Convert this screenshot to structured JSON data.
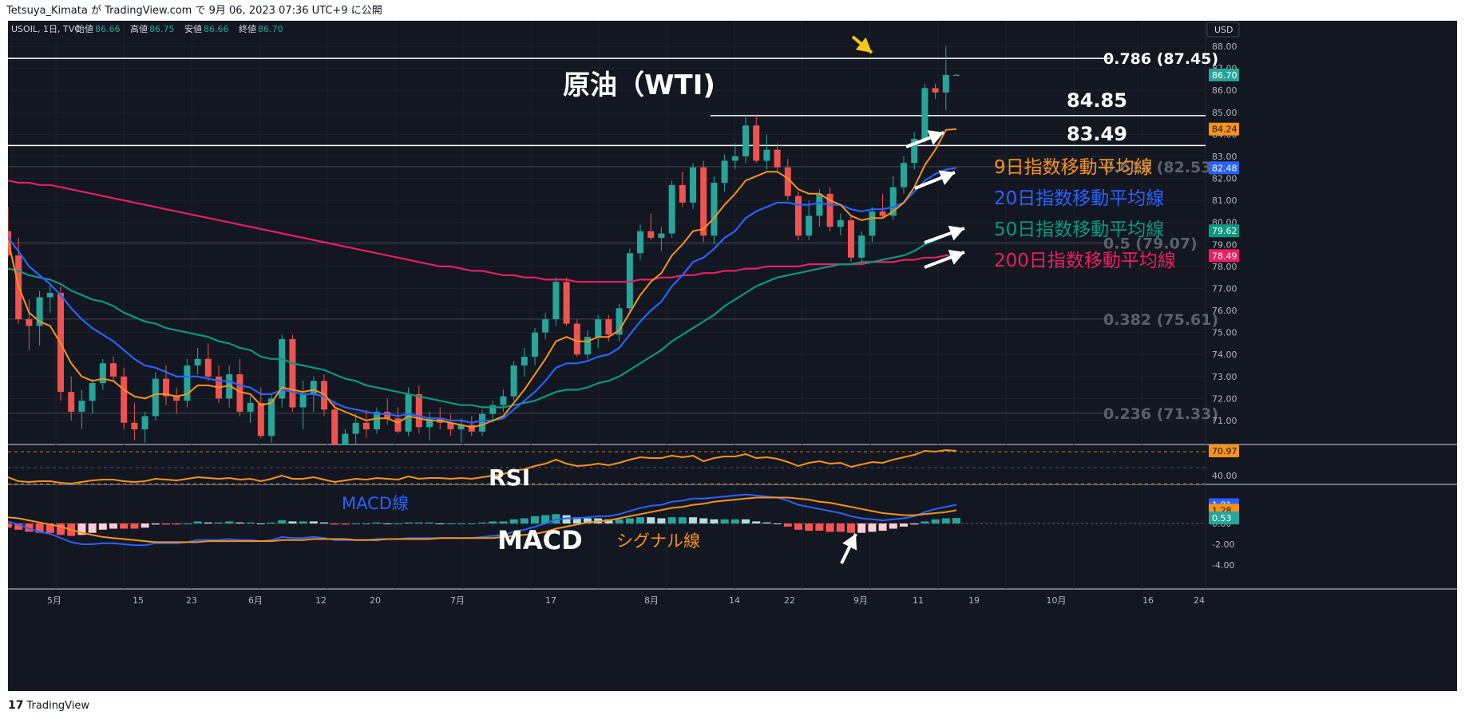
{
  "header": {
    "published_line": "Tetsuya_Kimata が TradingView.com で 9月 06, 2023 07:36 UTC+9 に公開"
  },
  "symbol_bar": {
    "symbol": "USOIL, 1日, TVC",
    "open_label": "始値",
    "open": "86.66",
    "high_label": "高値",
    "high": "86.75",
    "low_label": "安値",
    "low": "86.66",
    "close_label": "終値",
    "close": "86.70"
  },
  "currency_button": "USD",
  "footer": {
    "brand": "TradingView",
    "logo_mark": "17"
  },
  "colors": {
    "background": "#131722",
    "up": "#26a69a",
    "down": "#ef5350",
    "ema9": "#f7931a",
    "ema20": "#2962ff",
    "ema50": "#089981",
    "ema200": "#e91e63",
    "rsi": "#f7931a",
    "macd": "#2962ff",
    "signal": "#f7931a"
  },
  "annotations": {
    "title": "原油（WTI)",
    "level_84": "84.85",
    "level_83": "83.49",
    "ema9_label": "9日指数移動平均線",
    "ema20_label": "20日指数移動平均線",
    "ema50_label": "50日指数移動平均線",
    "ema200_label": "200日指数移動平均線",
    "rsi_label": "RSI",
    "macd_title": "MACD",
    "macd_line_label": "MACD線",
    "signal_line_label": "シグナル線"
  },
  "chart_data": [
    {
      "type": "candlestick",
      "symbol": "USOIL",
      "timeframe": "1日",
      "currency": "USD",
      "x_tick_labels": [
        "5月",
        "15",
        "23",
        "6月",
        "12",
        "20",
        "7月",
        "17",
        "8月",
        "14",
        "22",
        "9月",
        "11",
        "19",
        "10月",
        "16",
        "24"
      ],
      "y_ticks": [
        "88.00",
        "87.00",
        "86.00",
        "85.00",
        "84.00",
        "83.00",
        "82.00",
        "81.00",
        "80.00",
        "79.00",
        "78.00",
        "77.00",
        "76.00",
        "75.00",
        "74.00",
        "73.00",
        "72.00",
        "71.00"
      ],
      "ylim": [
        71,
        88
      ],
      "fibonacci": [
        {
          "label": "0.786 (87.45)",
          "value": 87.45
        },
        {
          "label": "0.618 (82.53)",
          "value": 82.53
        },
        {
          "label": "0.5 (79.07)",
          "value": 79.07
        },
        {
          "label": "0.382 (75.61)",
          "value": 75.61
        },
        {
          "label": "0.236 (71.33)",
          "value": 71.33
        }
      ],
      "horizontal_levels": [
        84.85,
        83.49
      ],
      "price_labels": [
        {
          "name": "EMA9",
          "text": "84.24",
          "value": 84.24
        },
        {
          "name": "EMA20",
          "text": "82.48",
          "value": 82.48
        },
        {
          "name": "EMA50",
          "text": "79.62",
          "value": 79.62
        },
        {
          "name": "EMA200",
          "text": "78.49",
          "value": 78.49
        },
        {
          "name": "Close",
          "text": "86.70",
          "value": 86.7
        }
      ],
      "candles": [
        [
          79.6,
          80.7,
          78.4,
          78.5
        ],
        [
          78.5,
          79.3,
          75.4,
          75.6
        ],
        [
          75.6,
          76.5,
          74.2,
          75.3
        ],
        [
          75.3,
          76.9,
          74.4,
          76.6
        ],
        [
          76.6,
          77.2,
          75.9,
          76.8
        ],
        [
          76.8,
          77.1,
          71.9,
          72.3
        ],
        [
          72.3,
          73.0,
          71.0,
          71.4
        ],
        [
          71.4,
          72.4,
          70.6,
          71.9
        ],
        [
          71.9,
          72.9,
          71.3,
          72.7
        ],
        [
          72.7,
          73.8,
          72.4,
          73.6
        ],
        [
          73.6,
          73.9,
          72.8,
          73.0
        ],
        [
          73.0,
          73.4,
          70.6,
          70.9
        ],
        [
          70.9,
          71.8,
          70.1,
          70.6
        ],
        [
          70.6,
          71.4,
          70.0,
          71.2
        ],
        [
          71.2,
          73.2,
          71.0,
          72.9
        ],
        [
          72.9,
          73.5,
          71.7,
          72.1
        ],
        [
          72.1,
          72.5,
          71.3,
          71.9
        ],
        [
          71.9,
          73.8,
          71.6,
          73.5
        ],
        [
          73.5,
          74.3,
          73.1,
          73.8
        ],
        [
          73.8,
          74.5,
          72.8,
          73.0
        ],
        [
          73.0,
          73.5,
          71.8,
          72.0
        ],
        [
          72.0,
          73.5,
          71.6,
          73.1
        ],
        [
          73.1,
          73.8,
          71.2,
          71.4
        ],
        [
          71.4,
          72.1,
          70.9,
          71.8
        ],
        [
          71.8,
          72.5,
          70.2,
          70.3
        ],
        [
          70.3,
          72.2,
          70.0,
          72.0
        ],
        [
          72.0,
          74.9,
          71.6,
          74.7
        ],
        [
          74.7,
          74.9,
          71.4,
          71.6
        ],
        [
          71.6,
          72.8,
          70.6,
          72.2
        ],
        [
          72.2,
          73.0,
          71.4,
          72.8
        ],
        [
          72.8,
          73.1,
          71.2,
          71.5
        ],
        [
          71.5,
          71.9,
          69.5,
          69.8
        ],
        [
          69.8,
          70.6,
          69.0,
          70.4
        ],
        [
          70.4,
          71.3,
          69.7,
          70.9
        ],
        [
          70.9,
          71.5,
          70.2,
          70.6
        ],
        [
          70.6,
          71.6,
          70.4,
          71.4
        ],
        [
          71.4,
          72.0,
          70.8,
          71.1
        ],
        [
          71.1,
          71.6,
          70.4,
          70.5
        ],
        [
          70.5,
          72.5,
          70.3,
          72.2
        ],
        [
          72.2,
          72.6,
          70.4,
          70.7
        ],
        [
          70.7,
          71.4,
          70.1,
          71.1
        ],
        [
          71.1,
          71.6,
          70.6,
          70.9
        ],
        [
          70.9,
          71.3,
          70.3,
          70.6
        ],
        [
          70.6,
          71.1,
          70.0,
          70.8
        ],
        [
          70.8,
          71.2,
          70.3,
          70.5
        ],
        [
          70.5,
          71.5,
          70.3,
          71.3
        ],
        [
          71.3,
          71.9,
          70.9,
          71.7
        ],
        [
          71.7,
          72.4,
          71.4,
          72.1
        ],
        [
          72.1,
          73.7,
          71.9,
          73.5
        ],
        [
          73.5,
          74.3,
          73.0,
          73.9
        ],
        [
          73.9,
          75.2,
          73.5,
          75.0
        ],
        [
          75.0,
          75.9,
          74.7,
          75.6
        ],
        [
          75.6,
          77.5,
          75.3,
          77.3
        ],
        [
          77.3,
          77.5,
          75.3,
          75.4
        ],
        [
          75.4,
          75.6,
          73.9,
          74.0
        ],
        [
          74.0,
          75.1,
          73.8,
          74.8
        ],
        [
          74.8,
          75.8,
          74.3,
          75.6
        ],
        [
          75.6,
          75.8,
          74.6,
          74.9
        ],
        [
          74.9,
          76.3,
          74.6,
          76.1
        ],
        [
          76.1,
          78.8,
          75.9,
          78.6
        ],
        [
          78.6,
          79.9,
          78.3,
          79.6
        ],
        [
          79.6,
          80.4,
          79.2,
          79.3
        ],
        [
          79.3,
          79.8,
          78.7,
          79.5
        ],
        [
          79.5,
          81.9,
          79.3,
          81.7
        ],
        [
          81.7,
          82.3,
          80.7,
          80.9
        ],
        [
          80.9,
          82.7,
          80.6,
          82.5
        ],
        [
          82.5,
          82.8,
          79.1,
          79.4
        ],
        [
          79.4,
          82.1,
          79.0,
          81.8
        ],
        [
          81.8,
          83.1,
          81.4,
          82.8
        ],
        [
          82.8,
          83.6,
          82.4,
          83.0
        ],
        [
          83.0,
          84.9,
          82.7,
          84.4
        ],
        [
          84.4,
          84.9,
          82.7,
          82.8
        ],
        [
          82.8,
          84.0,
          82.4,
          83.3
        ],
        [
          83.3,
          83.6,
          82.3,
          82.5
        ],
        [
          82.5,
          82.9,
          81.0,
          81.2
        ],
        [
          81.2,
          81.4,
          79.2,
          79.4
        ],
        [
          79.4,
          81.0,
          79.2,
          80.3
        ],
        [
          80.3,
          81.5,
          79.8,
          81.3
        ],
        [
          81.3,
          81.6,
          79.6,
          79.8
        ],
        [
          79.8,
          80.4,
          79.4,
          80.1
        ],
        [
          80.1,
          80.3,
          78.2,
          78.4
        ],
        [
          78.4,
          79.6,
          78.1,
          79.4
        ],
        [
          79.4,
          80.7,
          79.1,
          80.5
        ],
        [
          80.5,
          81.3,
          80.2,
          80.3
        ],
        [
          80.3,
          82.1,
          80.1,
          81.6
        ],
        [
          81.6,
          83.0,
          81.3,
          82.7
        ],
        [
          82.7,
          84.1,
          82.4,
          83.8
        ],
        [
          83.8,
          86.3,
          83.6,
          86.1
        ],
        [
          86.1,
          86.3,
          85.6,
          85.9
        ],
        [
          85.9,
          88.0,
          85.1,
          86.7
        ],
        [
          86.66,
          86.75,
          86.66,
          86.7
        ]
      ],
      "ema9_points": [
        79.2,
        77.1,
        75.9,
        75.5,
        75.3,
        74.5,
        73.6,
        73.0,
        72.8,
        72.9,
        72.8,
        72.4,
        72.1,
        72.0,
        72.2,
        72.2,
        72.1,
        72.2,
        72.6,
        72.6,
        72.5,
        72.6,
        72.3,
        72.2,
        71.7,
        71.8,
        72.5,
        72.4,
        72.3,
        72.4,
        72.2,
        71.6,
        71.4,
        71.2,
        71.0,
        71.1,
        71.1,
        70.9,
        71.2,
        71.1,
        71.0,
        71.0,
        70.9,
        70.8,
        70.7,
        70.8,
        71.0,
        71.2,
        71.8,
        72.4,
        73.1,
        73.8,
        74.6,
        74.8,
        74.6,
        74.6,
        74.8,
        74.8,
        75.1,
        75.9,
        76.7,
        77.3,
        77.7,
        78.5,
        79.0,
        79.6,
        79.7,
        80.2,
        80.8,
        81.3,
        81.9,
        82.1,
        82.3,
        82.3,
        82.0,
        81.5,
        81.3,
        81.3,
        81.0,
        80.8,
        80.3,
        80.1,
        80.2,
        80.2,
        80.5,
        80.9,
        81.6,
        82.6,
        83.3,
        84.2,
        84.24
      ],
      "ema20_points": [
        79.3,
        78.7,
        78.0,
        77.6,
        77.2,
        76.7,
        76.1,
        75.6,
        75.2,
        74.9,
        74.6,
        74.2,
        73.8,
        73.5,
        73.4,
        73.2,
        73.0,
        73.0,
        73.0,
        72.9,
        72.8,
        72.8,
        72.6,
        72.5,
        72.2,
        72.2,
        72.4,
        72.3,
        72.2,
        72.2,
        72.1,
        71.8,
        71.6,
        71.5,
        71.4,
        71.3,
        71.3,
        71.2,
        71.3,
        71.2,
        71.1,
        71.1,
        71.0,
        71.0,
        70.9,
        71.0,
        71.0,
        71.1,
        71.5,
        71.9,
        72.3,
        72.8,
        73.4,
        73.6,
        73.6,
        73.7,
        73.9,
        74.0,
        74.3,
        74.9,
        75.5,
        76.0,
        76.4,
        77.1,
        77.6,
        78.2,
        78.4,
        78.8,
        79.3,
        79.6,
        80.2,
        80.5,
        80.7,
        80.9,
        80.9,
        80.8,
        80.8,
        80.9,
        80.8,
        80.8,
        80.6,
        80.5,
        80.6,
        80.6,
        80.7,
        80.9,
        81.4,
        81.9,
        82.2,
        82.4,
        82.48
      ],
      "ema50_points": [
        77.9,
        77.8,
        77.6,
        77.5,
        77.4,
        77.2,
        76.9,
        76.7,
        76.5,
        76.4,
        76.2,
        75.9,
        75.7,
        75.5,
        75.4,
        75.2,
        75.1,
        75.0,
        74.9,
        74.8,
        74.6,
        74.5,
        74.3,
        74.2,
        73.9,
        73.8,
        73.8,
        73.6,
        73.5,
        73.4,
        73.3,
        73.1,
        72.9,
        72.8,
        72.6,
        72.5,
        72.4,
        72.3,
        72.2,
        72.1,
        72.0,
        71.9,
        71.8,
        71.7,
        71.7,
        71.6,
        71.6,
        71.6,
        71.7,
        71.8,
        71.9,
        72.1,
        72.3,
        72.4,
        72.4,
        72.5,
        72.7,
        72.8,
        73.0,
        73.3,
        73.6,
        73.9,
        74.2,
        74.6,
        74.9,
        75.2,
        75.5,
        75.8,
        76.2,
        76.5,
        76.8,
        77.1,
        77.3,
        77.5,
        77.6,
        77.7,
        77.8,
        77.9,
        78.0,
        78.1,
        78.1,
        78.2,
        78.2,
        78.3,
        78.4,
        78.5,
        78.7,
        79.0,
        79.2,
        79.4,
        79.62
      ],
      "ema200_points": [
        81.9,
        81.8,
        81.8,
        81.7,
        81.7,
        81.6,
        81.5,
        81.4,
        81.3,
        81.2,
        81.1,
        81.0,
        80.9,
        80.8,
        80.7,
        80.6,
        80.5,
        80.4,
        80.3,
        80.2,
        80.1,
        80.0,
        79.9,
        79.8,
        79.7,
        79.6,
        79.5,
        79.4,
        79.3,
        79.2,
        79.1,
        79.0,
        78.9,
        78.8,
        78.7,
        78.6,
        78.5,
        78.4,
        78.3,
        78.2,
        78.1,
        78.0,
        78.0,
        77.9,
        77.8,
        77.8,
        77.7,
        77.6,
        77.6,
        77.5,
        77.5,
        77.4,
        77.4,
        77.4,
        77.3,
        77.3,
        77.3,
        77.3,
        77.3,
        77.3,
        77.4,
        77.4,
        77.5,
        77.5,
        77.6,
        77.6,
        77.7,
        77.7,
        77.8,
        77.8,
        77.9,
        77.9,
        78.0,
        78.0,
        78.0,
        78.0,
        78.1,
        78.1,
        78.1,
        78.1,
        78.1,
        78.1,
        78.2,
        78.2,
        78.2,
        78.3,
        78.3,
        78.4,
        78.4,
        78.5,
        78.49
      ]
    },
    {
      "type": "line",
      "name": "RSI",
      "y_ticks": [
        "40.00"
      ],
      "levels": [
        70,
        50,
        30
      ],
      "last_value_label": "70.97",
      "last_value": 70.97,
      "values": [
        38,
        33,
        32,
        33,
        33,
        31,
        30,
        32,
        34,
        35,
        35,
        33,
        32,
        33,
        36,
        35,
        34,
        36,
        38,
        37,
        36,
        37,
        35,
        36,
        33,
        36,
        40,
        36,
        36,
        38,
        35,
        32,
        34,
        36,
        35,
        37,
        36,
        35,
        39,
        36,
        37,
        37,
        36,
        37,
        36,
        38,
        40,
        42,
        46,
        48,
        52,
        55,
        60,
        55,
        52,
        53,
        55,
        53,
        56,
        60,
        63,
        62,
        62,
        65,
        63,
        65,
        58,
        62,
        64,
        64,
        67,
        62,
        63,
        61,
        57,
        52,
        56,
        58,
        55,
        56,
        51,
        54,
        57,
        56,
        60,
        63,
        66,
        71,
        70,
        72,
        70.97
      ]
    },
    {
      "type": "bar",
      "name": "MACD",
      "y_ticks": [
        "0.00",
        "-2.00",
        "-4.00"
      ],
      "macd_last_label": "1.81",
      "signal_last_label": "1.28",
      "histogram_last_label": "0.53",
      "macd_last": 1.81,
      "signal_last": 1.28,
      "histogram_last": 0.53,
      "macd_values": [
        0.2,
        -0.1,
        -0.5,
        -0.8,
        -1.0,
        -1.4,
        -1.8,
        -2.0,
        -2.0,
        -1.9,
        -1.9,
        -2.0,
        -2.1,
        -2.1,
        -1.9,
        -1.9,
        -1.9,
        -1.8,
        -1.6,
        -1.6,
        -1.6,
        -1.5,
        -1.6,
        -1.6,
        -1.7,
        -1.6,
        -1.3,
        -1.4,
        -1.4,
        -1.3,
        -1.4,
        -1.6,
        -1.6,
        -1.6,
        -1.6,
        -1.5,
        -1.5,
        -1.5,
        -1.4,
        -1.4,
        -1.4,
        -1.4,
        -1.4,
        -1.4,
        -1.4,
        -1.3,
        -1.2,
        -1.1,
        -0.8,
        -0.6,
        -0.3,
        0.0,
        0.4,
        0.5,
        0.5,
        0.6,
        0.7,
        0.7,
        0.9,
        1.2,
        1.5,
        1.7,
        1.8,
        2.1,
        2.2,
        2.4,
        2.4,
        2.5,
        2.6,
        2.7,
        2.8,
        2.7,
        2.6,
        2.5,
        2.2,
        1.8,
        1.6,
        1.4,
        1.2,
        1.0,
        0.7,
        0.5,
        0.4,
        0.3,
        0.4,
        0.5,
        0.7,
        1.1,
        1.4,
        1.6,
        1.81
      ],
      "signal_values": [
        0.6,
        0.5,
        0.3,
        0.1,
        -0.1,
        -0.3,
        -0.6,
        -0.9,
        -1.1,
        -1.3,
        -1.4,
        -1.5,
        -1.6,
        -1.7,
        -1.8,
        -1.8,
        -1.8,
        -1.8,
        -1.8,
        -1.7,
        -1.7,
        -1.7,
        -1.7,
        -1.7,
        -1.7,
        -1.7,
        -1.6,
        -1.6,
        -1.6,
        -1.5,
        -1.5,
        -1.5,
        -1.5,
        -1.6,
        -1.6,
        -1.6,
        -1.5,
        -1.5,
        -1.5,
        -1.5,
        -1.5,
        -1.4,
        -1.4,
        -1.4,
        -1.4,
        -1.4,
        -1.4,
        -1.3,
        -1.2,
        -1.1,
        -1.0,
        -0.8,
        -0.5,
        -0.3,
        -0.1,
        0.1,
        0.2,
        0.3,
        0.5,
        0.7,
        0.9,
        1.1,
        1.3,
        1.5,
        1.6,
        1.8,
        1.9,
        2.1,
        2.2,
        2.3,
        2.4,
        2.5,
        2.5,
        2.5,
        2.5,
        2.4,
        2.3,
        2.1,
        2.0,
        1.8,
        1.6,
        1.4,
        1.2,
        1.0,
        0.9,
        0.8,
        0.8,
        0.9,
        1.0,
        1.1,
        1.28
      ]
    }
  ]
}
